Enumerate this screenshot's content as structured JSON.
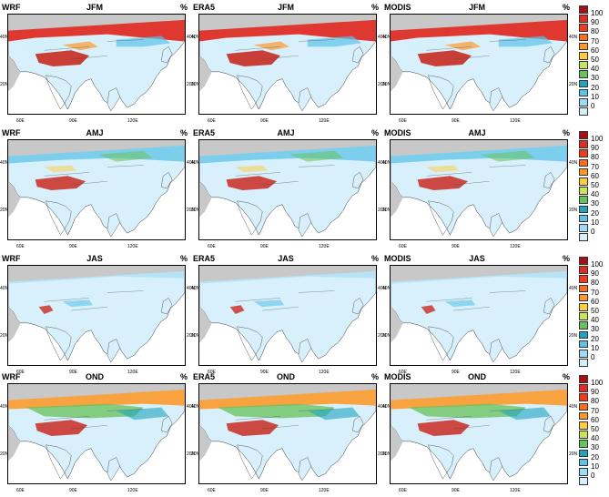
{
  "panels": [
    {
      "source": "WRF",
      "season": "JFM",
      "unit": "%"
    },
    {
      "source": "ERA5",
      "season": "JFM",
      "unit": "%"
    },
    {
      "source": "MODIS",
      "season": "JFM",
      "unit": "%"
    },
    {
      "source": "WRF",
      "season": "AMJ",
      "unit": "%"
    },
    {
      "source": "ERA5",
      "season": "AMJ",
      "unit": "%"
    },
    {
      "source": "MODIS",
      "season": "AMJ",
      "unit": "%"
    },
    {
      "source": "WRF",
      "season": "JAS",
      "unit": "%"
    },
    {
      "source": "ERA5",
      "season": "JAS",
      "unit": "%"
    },
    {
      "source": "MODIS",
      "season": "JAS",
      "unit": "%"
    },
    {
      "source": "WRF",
      "season": "OND",
      "unit": "%"
    },
    {
      "source": "ERA5",
      "season": "OND",
      "unit": "%"
    },
    {
      "source": "MODIS",
      "season": "OND",
      "unit": "%"
    }
  ],
  "lat_labels": [
    "40N",
    "20N"
  ],
  "lon_labels": [
    "60E",
    "90E",
    "120E"
  ],
  "colorbar": {
    "labels": [
      "100",
      "90",
      "80",
      "70",
      "60",
      "50",
      "40",
      "30",
      "20",
      "10",
      "0"
    ],
    "colors": [
      "#a50f15",
      "#de2d26",
      "#f03b20",
      "#fc6e21",
      "#fd9a2b",
      "#fecc3c",
      "#c7e45a",
      "#66c25a",
      "#1fa4c2",
      "#5dc3e8",
      "#9edcf5",
      "#d4f0fb"
    ]
  },
  "colors": {
    "land": "#d8f0fb",
    "ocean": "#ffffff",
    "outside_domain": "#c8c8c8"
  }
}
